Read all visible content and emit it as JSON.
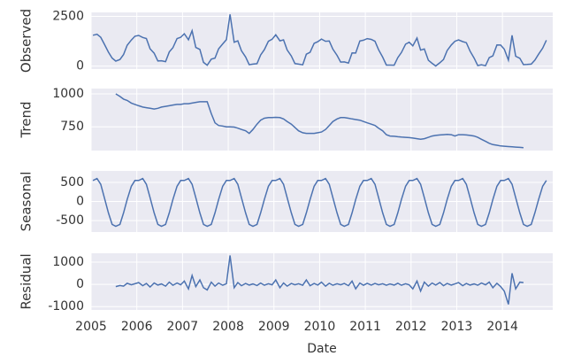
{
  "chart_data": {
    "type": "line",
    "xlabel": "Date",
    "color": "#4c72b0",
    "grid": true,
    "xlim": [
      2005,
      2015.1
    ],
    "xticks": [
      2005,
      2006,
      2007,
      2008,
      2009,
      2010,
      2011,
      2012,
      2013,
      2014
    ],
    "x": [
      2005.04,
      2005.13,
      2005.21,
      2005.29,
      2005.38,
      2005.46,
      2005.54,
      2005.63,
      2005.71,
      2005.79,
      2005.88,
      2005.96,
      2006.04,
      2006.13,
      2006.21,
      2006.29,
      2006.38,
      2006.46,
      2006.54,
      2006.63,
      2006.71,
      2006.79,
      2006.88,
      2006.96,
      2007.04,
      2007.13,
      2007.21,
      2007.29,
      2007.38,
      2007.46,
      2007.54,
      2007.63,
      2007.71,
      2007.79,
      2007.88,
      2007.96,
      2008.04,
      2008.13,
      2008.21,
      2008.29,
      2008.38,
      2008.46,
      2008.54,
      2008.63,
      2008.71,
      2008.79,
      2008.88,
      2008.96,
      2009.04,
      2009.13,
      2009.21,
      2009.29,
      2009.38,
      2009.46,
      2009.54,
      2009.63,
      2009.71,
      2009.79,
      2009.88,
      2009.96,
      2010.04,
      2010.13,
      2010.21,
      2010.29,
      2010.38,
      2010.46,
      2010.54,
      2010.63,
      2010.71,
      2010.79,
      2010.88,
      2010.96,
      2011.04,
      2011.13,
      2011.21,
      2011.29,
      2011.38,
      2011.46,
      2011.54,
      2011.63,
      2011.71,
      2011.79,
      2011.88,
      2011.96,
      2012.04,
      2012.13,
      2012.21,
      2012.29,
      2012.38,
      2012.46,
      2012.54,
      2012.63,
      2012.71,
      2012.79,
      2012.88,
      2012.96,
      2013.04,
      2013.13,
      2013.21,
      2013.29,
      2013.38,
      2013.46,
      2013.54,
      2013.63,
      2013.71,
      2013.79,
      2013.88,
      2013.96,
      2014.04,
      2014.13,
      2014.21,
      2014.29,
      2014.38,
      2014.46,
      2014.54,
      2014.63,
      2014.71,
      2014.79,
      2014.88,
      2014.96
    ],
    "panels": [
      {
        "ylabel": "Observed",
        "ylim": [
          -150,
          2700
        ],
        "yticks": [
          0,
          2500
        ],
        "values": [
          1550,
          1600,
          1450,
          1100,
          700,
          400,
          250,
          330,
          580,
          1050,
          1310,
          1500,
          1540,
          1440,
          1385,
          870,
          645,
          260,
          270,
          225,
          710,
          925,
          1380,
          1450,
          1625,
          1325,
          1780,
          935,
          840,
          190,
          40,
          350,
          400,
          870,
          1115,
          1330,
          2600,
          1198,
          1270,
          770,
          460,
          70,
          100,
          120,
          560,
          825,
          1250,
          1350,
          1572,
          1270,
          1320,
          810,
          510,
          125,
          100,
          65,
          600,
          690,
          1140,
          1225,
          1360,
          1250,
          1260,
          850,
          540,
          200,
          210,
          155,
          660,
          655,
          1260,
          1300,
          1380,
          1340,
          1250,
          820,
          450,
          50,
          50,
          48,
          425,
          682,
          1100,
          1198,
          1015,
          1410,
          805,
          860,
          290,
          140,
          5,
          168,
          330,
          782,
          1060,
          1250,
          1320,
          1230,
          1178,
          755,
          400,
          30,
          65,
          20,
          425,
          515,
          1060,
          1055,
          853,
          300,
          1548,
          496,
          394,
          72,
          80,
          100,
          300,
          600,
          900,
          1300
        ]
      },
      {
        "ylabel": "Trend",
        "ylim": [
          570,
          1040
        ],
        "yticks": [
          750,
          1000
        ],
        "values": [
          null,
          null,
          null,
          null,
          null,
          null,
          1000,
          980,
          960,
          950,
          930,
          920,
          910,
          900,
          895,
          890,
          885,
          890,
          900,
          905,
          910,
          915,
          920,
          920,
          925,
          925,
          930,
          935,
          940,
          940,
          940,
          850,
          780,
          760,
          755,
          750,
          750,
          748,
          740,
          730,
          720,
          700,
          730,
          770,
          800,
          815,
          820,
          820,
          822,
          820,
          810,
          790,
          770,
          745,
          720,
          705,
          700,
          700,
          700,
          705,
          710,
          730,
          760,
          790,
          810,
          820,
          820,
          815,
          810,
          805,
          800,
          790,
          780,
          770,
          760,
          740,
          720,
          690,
          680,
          678,
          675,
          672,
          670,
          668,
          665,
          660,
          655,
          660,
          670,
          680,
          685,
          688,
          690,
          692,
          690,
          680,
          690,
          690,
          688,
          685,
          680,
          670,
          655,
          640,
          625,
          615,
          610,
          605,
          603,
          600,
          598,
          596,
          594,
          592,
          null,
          null,
          null,
          null,
          null,
          null
        ]
      },
      {
        "ylabel": "Seasonal",
        "ylim": [
          -800,
          800
        ],
        "yticks": [
          -500,
          0,
          500
        ],
        "values": [
          550,
          600,
          450,
          100,
          -300,
          -600,
          -650,
          -600,
          -300,
          50,
          400,
          550,
          550,
          600,
          450,
          100,
          -300,
          -600,
          -650,
          -600,
          -300,
          50,
          400,
          550,
          550,
          600,
          450,
          100,
          -300,
          -600,
          -650,
          -600,
          -300,
          50,
          400,
          550,
          550,
          600,
          450,
          100,
          -300,
          -600,
          -650,
          -600,
          -300,
          50,
          400,
          550,
          550,
          600,
          450,
          100,
          -300,
          -600,
          -650,
          -600,
          -300,
          50,
          400,
          550,
          550,
          600,
          450,
          100,
          -300,
          -600,
          -650,
          -600,
          -300,
          50,
          400,
          550,
          550,
          600,
          450,
          100,
          -300,
          -600,
          -650,
          -600,
          -300,
          50,
          400,
          550,
          550,
          600,
          450,
          100,
          -300,
          -600,
          -650,
          -600,
          -300,
          50,
          400,
          550,
          550,
          600,
          450,
          100,
          -300,
          -600,
          -650,
          -600,
          -300,
          50,
          400,
          550,
          550,
          600,
          450,
          100,
          -300,
          -600,
          -650,
          -600,
          -300,
          50,
          400,
          550
        ]
      },
      {
        "ylabel": "Residual",
        "ylim": [
          -1150,
          1400
        ],
        "yticks": [
          -1000,
          0,
          1000
        ],
        "values": [
          null,
          null,
          null,
          null,
          null,
          null,
          -100,
          -50,
          -80,
          50,
          -20,
          30,
          80,
          -60,
          40,
          -120,
          60,
          -30,
          20,
          -80,
          100,
          -40,
          60,
          -20,
          150,
          -200,
          400,
          -100,
          200,
          -150,
          -250,
          100,
          -80,
          60,
          -40,
          30,
          1300,
          -150,
          80,
          -60,
          40,
          -30,
          20,
          -50,
          60,
          -40,
          30,
          -20,
          200,
          -150,
          60,
          -80,
          40,
          -20,
          30,
          -40,
          200,
          -60,
          40,
          -30,
          100,
          -80,
          50,
          -40,
          30,
          -20,
          40,
          -60,
          150,
          -200,
          60,
          -40,
          50,
          -30,
          40,
          -20,
          30,
          -40,
          20,
          -30,
          50,
          -40,
          30,
          -20,
          -200,
          150,
          -300,
          100,
          -80,
          60,
          -30,
          80,
          -60,
          40,
          -30,
          20,
          80,
          -60,
          40,
          -30,
          20,
          -40,
          60,
          -20,
          100,
          -150,
          50,
          -100,
          -300,
          -900,
          500,
          -200,
          100,
          80,
          null,
          null,
          null,
          null,
          null,
          null
        ]
      }
    ]
  }
}
